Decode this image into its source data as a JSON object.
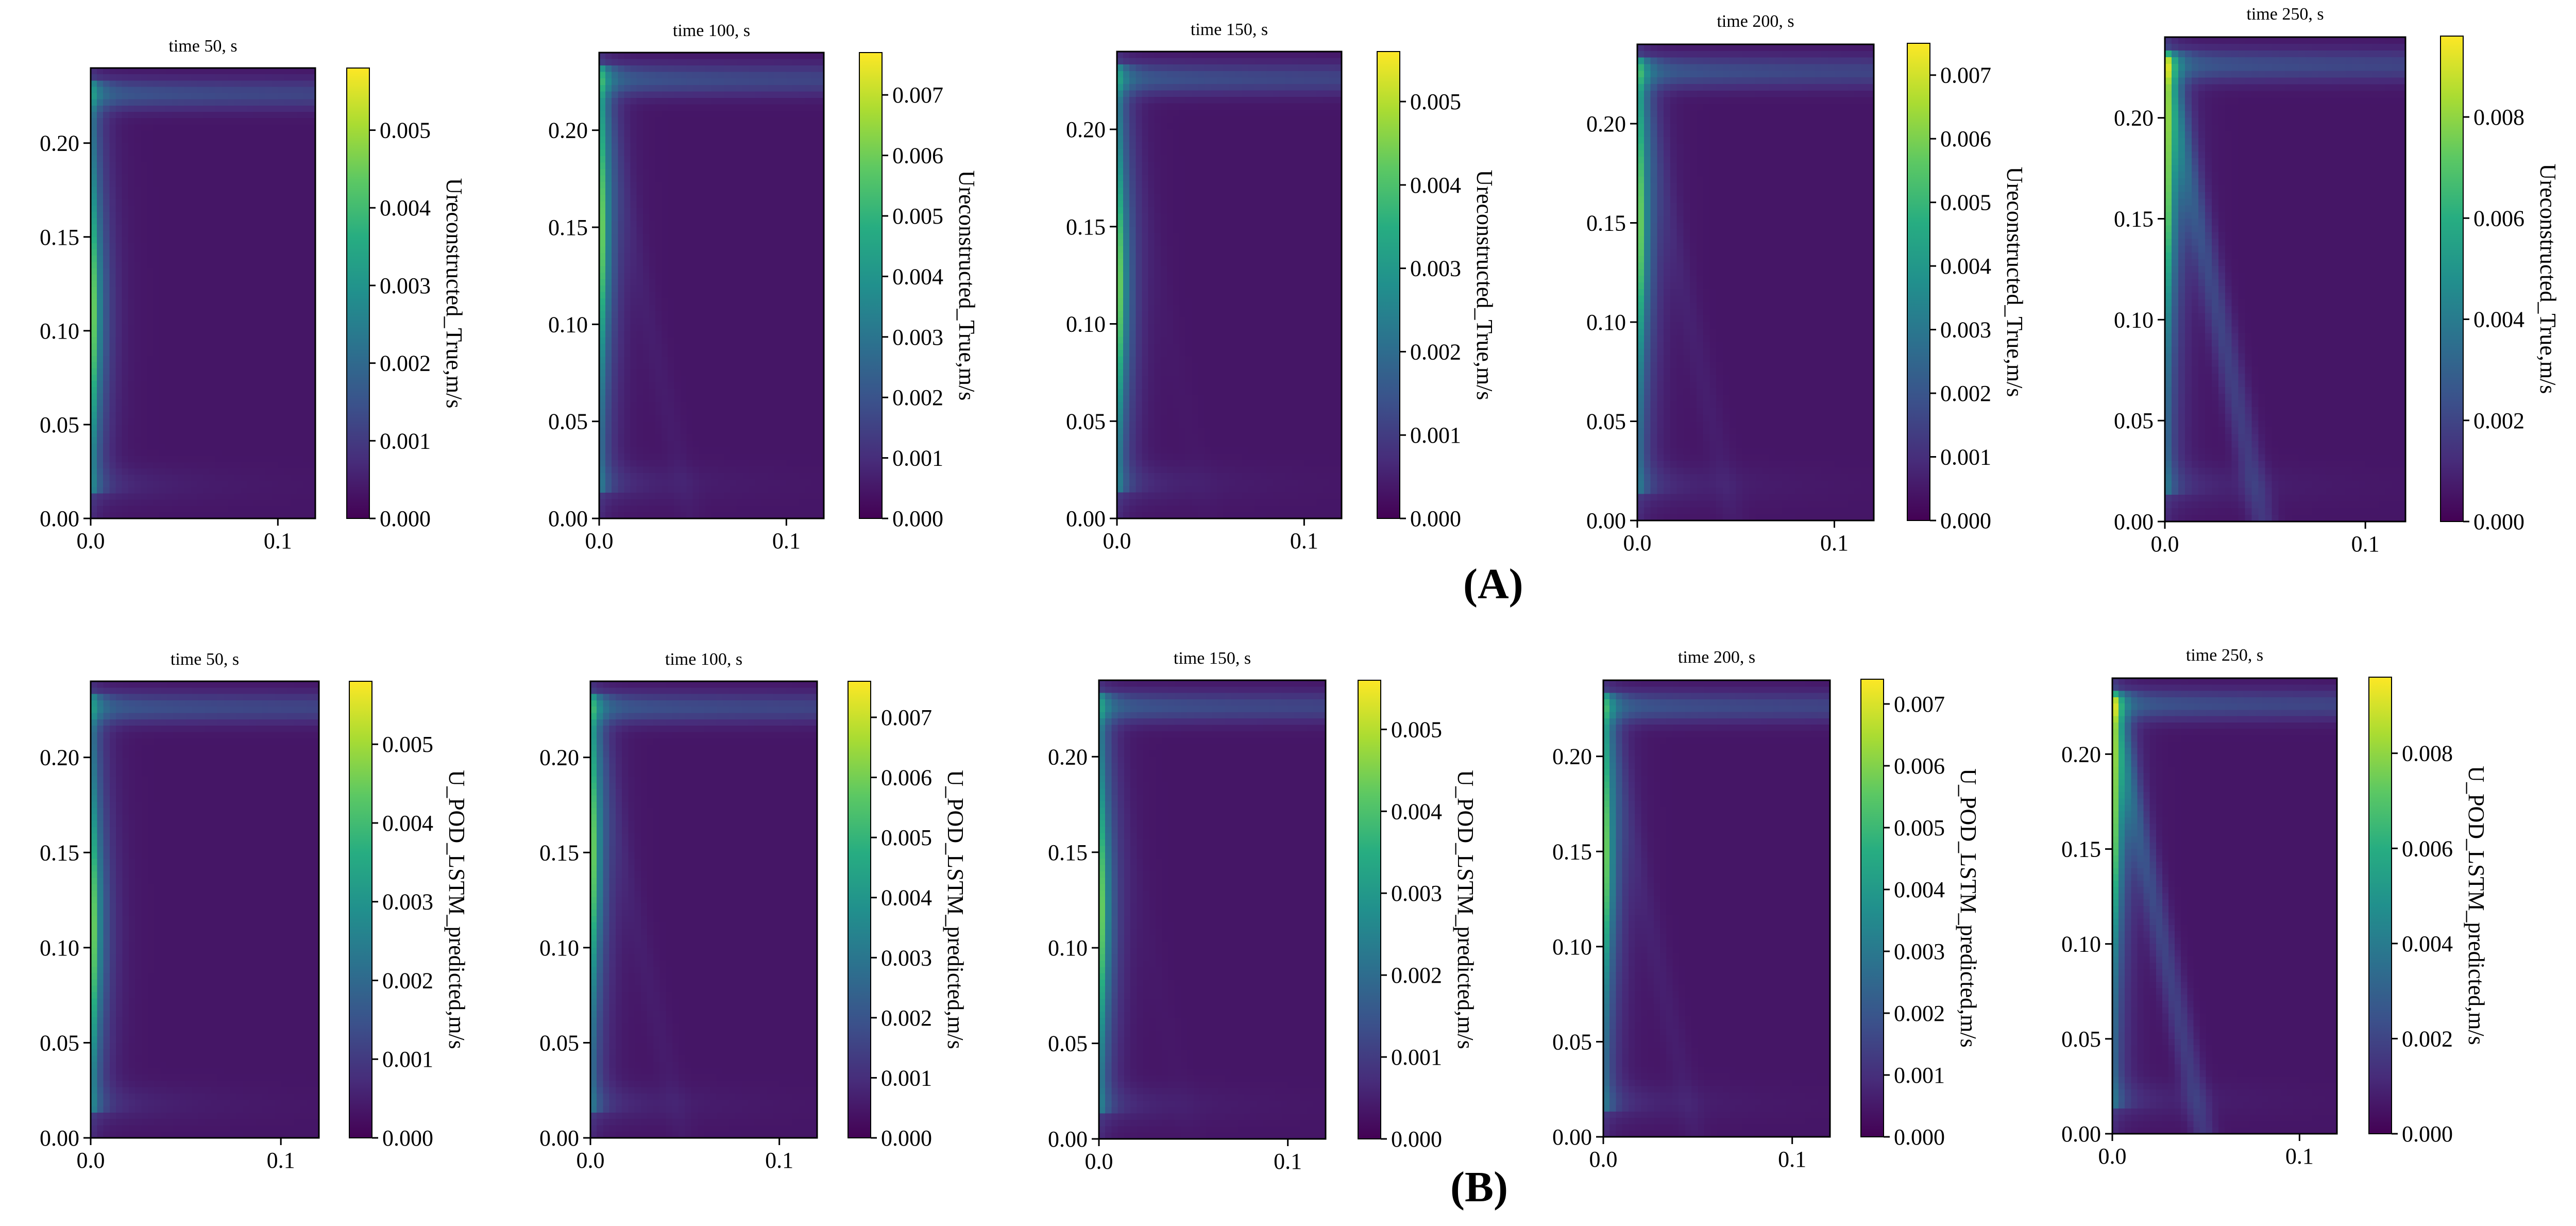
{
  "panel_labels": {
    "a": "(A)",
    "b": "(B)"
  },
  "colormap": [
    "#440154",
    "#472c7a",
    "#3b518b",
    "#2c718e",
    "#21908d",
    "#27ad81",
    "#5cc863",
    "#aadc32",
    "#fde725"
  ],
  "chart_data": [
    {
      "type": "heatmap",
      "row": "A",
      "title": "time 50, s",
      "colorbar_label": "Ureconstructed_True,m/s",
      "x_ticks": [
        0.0,
        0.1
      ],
      "x_tick_labels": [
        "0.0",
        "0.1"
      ],
      "xlim": [
        0,
        0.12
      ],
      "y_ticks": [
        0.0,
        0.05,
        0.1,
        0.15,
        0.2
      ],
      "y_tick_labels": [
        "0.00",
        "0.05",
        "0.10",
        "0.15",
        "0.20"
      ],
      "ylim": [
        0,
        0.24
      ],
      "cbar_ticks": [
        0,
        0.001,
        0.002,
        0.003,
        0.004,
        0.005
      ],
      "cbar_tick_labels": [
        "0.000",
        "0.001",
        "0.002",
        "0.003",
        "0.004",
        "0.005"
      ],
      "cbar_max": 0.0058,
      "field": {
        "wall_peak_y": 0.11,
        "plume": 0.0
      }
    },
    {
      "type": "heatmap",
      "row": "A",
      "title": "time 100, s",
      "colorbar_label": "Ureconstructed_True,m/s",
      "x_ticks": [
        0.0,
        0.1
      ],
      "x_tick_labels": [
        "0.0",
        "0.1"
      ],
      "xlim": [
        0,
        0.12
      ],
      "y_ticks": [
        0.0,
        0.05,
        0.1,
        0.15,
        0.2
      ],
      "y_tick_labels": [
        "0.00",
        "0.05",
        "0.10",
        "0.15",
        "0.20"
      ],
      "ylim": [
        0,
        0.24
      ],
      "cbar_ticks": [
        0,
        0.001,
        0.002,
        0.003,
        0.004,
        0.005,
        0.006,
        0.007
      ],
      "cbar_tick_labels": [
        "0.000",
        "0.001",
        "0.002",
        "0.003",
        "0.004",
        "0.005",
        "0.006",
        "0.007"
      ],
      "cbar_max": 0.0077,
      "field": {
        "wall_peak_y": 0.15,
        "plume": 0.15
      }
    },
    {
      "type": "heatmap",
      "row": "A",
      "title": "time 150, s",
      "colorbar_label": "Ureconstructed_True,m/s",
      "x_ticks": [
        0.0,
        0.1
      ],
      "x_tick_labels": [
        "0.0",
        "0.1"
      ],
      "xlim": [
        0,
        0.12
      ],
      "y_ticks": [
        0.0,
        0.05,
        0.1,
        0.15,
        0.2
      ],
      "y_tick_labels": [
        "0.00",
        "0.05",
        "0.10",
        "0.15",
        "0.20"
      ],
      "ylim": [
        0,
        0.24
      ],
      "cbar_ticks": [
        0,
        0.001,
        0.002,
        0.003,
        0.004,
        0.005
      ],
      "cbar_tick_labels": [
        "0.000",
        "0.001",
        "0.002",
        "0.003",
        "0.004",
        "0.005"
      ],
      "cbar_max": 0.0056,
      "field": {
        "wall_peak_y": 0.12,
        "plume": 0.05
      }
    },
    {
      "type": "heatmap",
      "row": "A",
      "title": "time 200, s",
      "colorbar_label": "Ureconstructed_True,m/s",
      "x_ticks": [
        0.0,
        0.1
      ],
      "x_tick_labels": [
        "0.0",
        "0.1"
      ],
      "xlim": [
        0,
        0.12
      ],
      "y_ticks": [
        0.0,
        0.05,
        0.1,
        0.15,
        0.2
      ],
      "y_tick_labels": [
        "0.00",
        "0.05",
        "0.10",
        "0.15",
        "0.20"
      ],
      "ylim": [
        0,
        0.24
      ],
      "cbar_ticks": [
        0,
        0.001,
        0.002,
        0.003,
        0.004,
        0.005,
        0.006,
        0.007
      ],
      "cbar_tick_labels": [
        "0.000",
        "0.001",
        "0.002",
        "0.003",
        "0.004",
        "0.005",
        "0.006",
        "0.007"
      ],
      "cbar_max": 0.0075,
      "field": {
        "wall_peak_y": 0.15,
        "plume": 0.2
      }
    },
    {
      "type": "heatmap",
      "row": "A",
      "title": "time 250, s",
      "colorbar_label": "Ureconstructed_True,m/s",
      "x_ticks": [
        0.0,
        0.1
      ],
      "x_tick_labels": [
        "0.0",
        "0.1"
      ],
      "xlim": [
        0,
        0.12
      ],
      "y_ticks": [
        0.0,
        0.05,
        0.1,
        0.15,
        0.2
      ],
      "y_tick_labels": [
        "0.00",
        "0.05",
        "0.10",
        "0.15",
        "0.20"
      ],
      "ylim": [
        0,
        0.24
      ],
      "cbar_ticks": [
        0,
        0.002,
        0.004,
        0.006,
        0.008
      ],
      "cbar_tick_labels": [
        "0.000",
        "0.002",
        "0.004",
        "0.006",
        "0.008"
      ],
      "cbar_max": 0.0096,
      "field": {
        "wall_peak_y": 0.17,
        "plume": 1.0
      }
    },
    {
      "type": "heatmap",
      "row": "B",
      "title": "time 50, s",
      "colorbar_label": "U_POD_LSTM_predicted,m/s",
      "x_ticks": [
        0.0,
        0.1
      ],
      "x_tick_labels": [
        "0.0",
        "0.1"
      ],
      "xlim": [
        0,
        0.12
      ],
      "y_ticks": [
        0.0,
        0.05,
        0.1,
        0.15,
        0.2
      ],
      "y_tick_labels": [
        "0.00",
        "0.05",
        "0.10",
        "0.15",
        "0.20"
      ],
      "ylim": [
        0,
        0.24
      ],
      "cbar_ticks": [
        0,
        0.001,
        0.002,
        0.003,
        0.004,
        0.005
      ],
      "cbar_tick_labels": [
        "0.000",
        "0.001",
        "0.002",
        "0.003",
        "0.004",
        "0.005"
      ],
      "cbar_max": 0.0058,
      "field": {
        "wall_peak_y": 0.11,
        "plume": 0.0
      }
    },
    {
      "type": "heatmap",
      "row": "B",
      "title": "time 100, s",
      "colorbar_label": "U_POD_LSTM_predicted,m/s",
      "x_ticks": [
        0.0,
        0.1
      ],
      "x_tick_labels": [
        "0.0",
        "0.1"
      ],
      "xlim": [
        0,
        0.12
      ],
      "y_ticks": [
        0.0,
        0.05,
        0.1,
        0.15,
        0.2
      ],
      "y_tick_labels": [
        "0.00",
        "0.05",
        "0.10",
        "0.15",
        "0.20"
      ],
      "ylim": [
        0,
        0.24
      ],
      "cbar_ticks": [
        0,
        0.001,
        0.002,
        0.003,
        0.004,
        0.005,
        0.006,
        0.007
      ],
      "cbar_tick_labels": [
        "0.000",
        "0.001",
        "0.002",
        "0.003",
        "0.004",
        "0.005",
        "0.006",
        "0.007"
      ],
      "cbar_max": 0.0076,
      "field": {
        "wall_peak_y": 0.15,
        "plume": 0.15
      }
    },
    {
      "type": "heatmap",
      "row": "B",
      "title": "time 150, s",
      "colorbar_label": "U_POD_LSTM_predicted,m/s",
      "x_ticks": [
        0.0,
        0.1
      ],
      "x_tick_labels": [
        "0.0",
        "0.1"
      ],
      "xlim": [
        0,
        0.12
      ],
      "y_ticks": [
        0.0,
        0.05,
        0.1,
        0.15,
        0.2
      ],
      "y_tick_labels": [
        "0.00",
        "0.05",
        "0.10",
        "0.15",
        "0.20"
      ],
      "ylim": [
        0,
        0.24
      ],
      "cbar_ticks": [
        0,
        0.001,
        0.002,
        0.003,
        0.004,
        0.005
      ],
      "cbar_tick_labels": [
        "0.000",
        "0.001",
        "0.002",
        "0.003",
        "0.004",
        "0.005"
      ],
      "cbar_max": 0.0056,
      "field": {
        "wall_peak_y": 0.12,
        "plume": 0.05
      }
    },
    {
      "type": "heatmap",
      "row": "B",
      "title": "time 200, s",
      "colorbar_label": "U_POD_LSTM_predicted,m/s",
      "x_ticks": [
        0.0,
        0.1
      ],
      "x_tick_labels": [
        "0.0",
        "0.1"
      ],
      "xlim": [
        0,
        0.12
      ],
      "y_ticks": [
        0.0,
        0.05,
        0.1,
        0.15,
        0.2
      ],
      "y_tick_labels": [
        "0.00",
        "0.05",
        "0.10",
        "0.15",
        "0.20"
      ],
      "ylim": [
        0,
        0.24
      ],
      "cbar_ticks": [
        0,
        0.001,
        0.002,
        0.003,
        0.004,
        0.005,
        0.006,
        0.007
      ],
      "cbar_tick_labels": [
        "0.000",
        "0.001",
        "0.002",
        "0.003",
        "0.004",
        "0.005",
        "0.006",
        "0.007"
      ],
      "cbar_max": 0.0074,
      "field": {
        "wall_peak_y": 0.15,
        "plume": 0.2
      }
    },
    {
      "type": "heatmap",
      "row": "B",
      "title": "time 250, s",
      "colorbar_label": "U_POD_LSTM_predicted,m/s",
      "x_ticks": [
        0.0,
        0.1
      ],
      "x_tick_labels": [
        "0.0",
        "0.1"
      ],
      "xlim": [
        0,
        0.12
      ],
      "y_ticks": [
        0.0,
        0.05,
        0.1,
        0.15,
        0.2
      ],
      "y_tick_labels": [
        "0.00",
        "0.05",
        "0.10",
        "0.15",
        "0.20"
      ],
      "ylim": [
        0,
        0.24
      ],
      "cbar_ticks": [
        0,
        0.002,
        0.004,
        0.006,
        0.008
      ],
      "cbar_tick_labels": [
        "0.000",
        "0.002",
        "0.004",
        "0.006",
        "0.008"
      ],
      "cbar_max": 0.0096,
      "field": {
        "wall_peak_y": 0.17,
        "plume": 1.0
      }
    }
  ]
}
